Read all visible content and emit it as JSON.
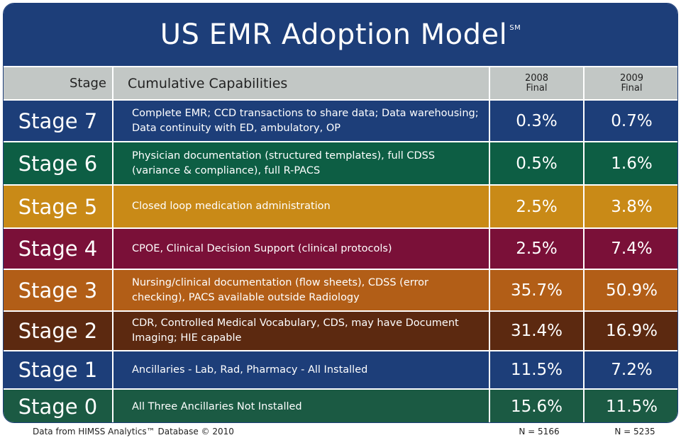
{
  "title": "US EMR Adoption Model",
  "title_mark": "SM",
  "header": {
    "stage": "Stage",
    "capabilities": "Cumulative Capabilities",
    "col1_year": "2008",
    "col1_sub": "Final",
    "col2_year": "2009",
    "col2_sub": "Final"
  },
  "rows": [
    {
      "stage": "Stage 7",
      "capabilities": "Complete EMR; CCD transactions to share data; Data warehousing; Data continuity with ED, ambulatory, OP",
      "y2008": "0.3%",
      "y2009": "0.7%",
      "color": "#1d3e79"
    },
    {
      "stage": "Stage 6",
      "capabilities": "Physician documentation (structured templates), full CDSS (variance & compliance), full R-PACS",
      "y2008": "0.5%",
      "y2009": "1.6%",
      "color": "#0d5e44"
    },
    {
      "stage": "Stage 5",
      "capabilities": "Closed loop medication administration",
      "y2008": "2.5%",
      "y2009": "3.8%",
      "color": "#c98a17"
    },
    {
      "stage": "Stage 4",
      "capabilities": "CPOE, Clinical Decision Support (clinical protocols)",
      "y2008": "2.5%",
      "y2009": "7.4%",
      "color": "#7a1038"
    },
    {
      "stage": "Stage 3",
      "capabilities": "Nursing/clinical documentation (flow sheets), CDSS (error checking), PACS available outside Radiology",
      "y2008": "35.7%",
      "y2009": "50.9%",
      "color": "#b25e17"
    },
    {
      "stage": "Stage 2",
      "capabilities": "CDR, Controlled Medical Vocabulary, CDS, may have Document Imaging; HIE capable",
      "y2008": "31.4%",
      "y2009": "16.9%",
      "color": "#5c2910"
    },
    {
      "stage": "Stage 1",
      "capabilities": "Ancillaries - Lab, Rad, Pharmacy - All Installed",
      "y2008": "11.5%",
      "y2009": "7.2%",
      "color": "#1d3e79"
    },
    {
      "stage": "Stage 0",
      "capabilities": "All Three Ancillaries Not Installed",
      "y2008": "15.6%",
      "y2009": "11.5%",
      "color": "#1b5a43"
    }
  ],
  "footer": {
    "source": "Data from HIMSS Analytics™ Database © 2010",
    "n2008": "N = 5166",
    "n2009": "N = 5235"
  },
  "chart_data": {
    "type": "table",
    "title": "US EMR Adoption Model",
    "columns": [
      "Stage",
      "Cumulative Capabilities",
      "2008 Final",
      "2009 Final"
    ],
    "rows": [
      [
        "Stage 7",
        "Complete EMR; CCD transactions to share data; Data warehousing; Data continuity with ED, ambulatory, OP",
        0.3,
        0.7
      ],
      [
        "Stage 6",
        "Physician documentation (structured templates), full CDSS (variance & compliance), full R-PACS",
        0.5,
        1.6
      ],
      [
        "Stage 5",
        "Closed loop medication administration",
        2.5,
        3.8
      ],
      [
        "Stage 4",
        "CPOE, Clinical Decision Support (clinical protocols)",
        2.5,
        7.4
      ],
      [
        "Stage 3",
        "Nursing/clinical documentation (flow sheets), CDSS (error checking), PACS available outside Radiology",
        35.7,
        50.9
      ],
      [
        "Stage 2",
        "CDR, Controlled Medical Vocabulary, CDS, may have Document Imaging; HIE capable",
        31.4,
        16.9
      ],
      [
        "Stage 1",
        "Ancillaries - Lab, Rad, Pharmacy - All Installed",
        11.5,
        7.2
      ],
      [
        "Stage 0",
        "All Three Ancillaries Not Installed",
        15.6,
        11.5
      ]
    ],
    "n": {
      "2008": 5166,
      "2009": 5235
    }
  }
}
